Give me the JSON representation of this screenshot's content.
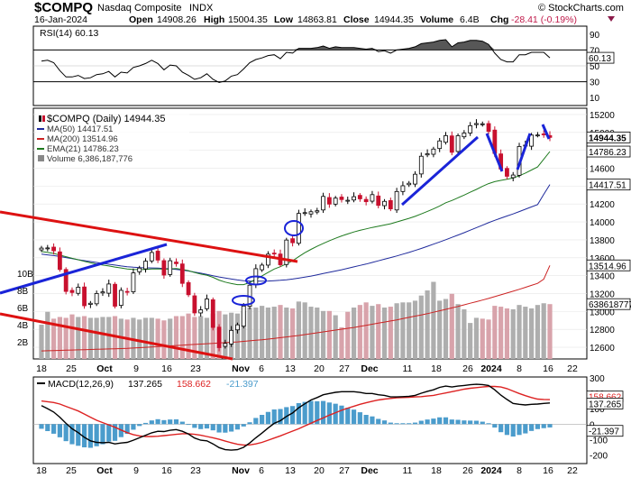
{
  "header": {
    "symbol": "$COMPQ",
    "name": "Nasdaq Composite",
    "exchange": "INDX",
    "date": "16-Jan-2024",
    "open_label": "Open",
    "open": "14908.26",
    "high_label": "High",
    "high": "15004.35",
    "low_label": "Low",
    "low": "14863.81",
    "close_label": "Close",
    "close": "14944.35",
    "volume_label": "Volume",
    "volume": "6.4B",
    "chg_label": "Chg",
    "chg": "-28.41 (-0.19%)",
    "brand": "© StockCharts.com"
  },
  "rsi_panel": {
    "legend": "RSI(14) 60.13",
    "value_tag": "60.13",
    "ticks": [
      "90",
      "70",
      "50",
      "30",
      "10"
    ]
  },
  "price_panel": {
    "legend": [
      {
        "text": "$COMPQ (Daily) 14944.35",
        "color": "#000000"
      },
      {
        "text": "MA(50) 14417.51",
        "color": "#1f2a9c"
      },
      {
        "text": "MA(200) 13514.96",
        "color": "#cc2222"
      },
      {
        "text": "EMA(21) 14786.23",
        "color": "#1e7a1e"
      },
      {
        "text": "Volume 6,386,187,776",
        "color": "#555555"
      }
    ],
    "tags": {
      "close": "14944.35",
      "ema21": "14786.23",
      "ma50": "14417.51",
      "ma200": "13514.96",
      "volume": "6386187776"
    },
    "price_ticks": [
      "15200",
      "15000",
      "14800",
      "14600",
      "14400",
      "14200",
      "14000",
      "13800",
      "13600",
      "13400",
      "13200",
      "13000",
      "12800",
      "12600"
    ],
    "volume_ticks": [
      "10B",
      "8B",
      "6B",
      "4B",
      "2B"
    ]
  },
  "macd_panel": {
    "legend_text": "MACD(12,26,9)",
    "macd_value": "137.265",
    "signal_value": "158.662",
    "hist_value": "-21.397",
    "tags": {
      "signal": "158.662",
      "macd": "137.265",
      "hist": "-21.397"
    },
    "ticks": [
      "300",
      "200",
      "100",
      "0",
      "-100",
      "-200"
    ]
  },
  "x_axis": {
    "labels": [
      "18",
      "25",
      "Oct",
      "9",
      "16",
      "23",
      "Nov",
      "6",
      "13",
      "20",
      "27",
      "Dec",
      "11",
      "18",
      "26",
      "2024",
      "8",
      "16",
      "22"
    ],
    "bold": [
      "Oct",
      "Nov",
      "Dec",
      "2024"
    ]
  },
  "chart_data": [
    {
      "type": "candlestick",
      "title": "$COMPQ (Daily) 14944.35",
      "x": [
        "2023-09-15",
        "2023-09-18",
        "2023-09-19",
        "2023-09-20",
        "2023-09-21",
        "2023-09-22",
        "2023-09-25",
        "2023-09-26",
        "2023-09-27",
        "2023-09-28",
        "2023-09-29",
        "2023-10-02",
        "2023-10-03",
        "2023-10-04",
        "2023-10-05",
        "2023-10-06",
        "2023-10-09",
        "2023-10-10",
        "2023-10-11",
        "2023-10-12",
        "2023-10-13",
        "2023-10-16",
        "2023-10-17",
        "2023-10-18",
        "2023-10-19",
        "2023-10-20",
        "2023-10-23",
        "2023-10-24",
        "2023-10-25",
        "2023-10-26",
        "2023-10-27",
        "2023-10-30",
        "2023-10-31",
        "2023-11-01",
        "2023-11-02",
        "2023-11-03",
        "2023-11-06",
        "2023-11-07",
        "2023-11-08",
        "2023-11-09",
        "2023-11-10",
        "2023-11-13",
        "2023-11-14",
        "2023-11-15",
        "2023-11-16",
        "2023-11-17",
        "2023-11-20",
        "2023-11-21",
        "2023-11-22",
        "2023-11-24",
        "2023-11-27",
        "2023-11-28",
        "2023-11-29",
        "2023-11-30",
        "2023-12-01",
        "2023-12-04",
        "2023-12-05",
        "2023-12-06",
        "2023-12-07",
        "2023-12-08",
        "2023-12-11",
        "2023-12-12",
        "2023-12-13",
        "2023-12-14",
        "2023-12-15",
        "2023-12-18",
        "2023-12-19",
        "2023-12-20",
        "2023-12-21",
        "2023-12-22",
        "2023-12-26",
        "2023-12-27",
        "2023-12-28",
        "2023-12-29",
        "2024-01-02",
        "2024-01-03",
        "2024-01-04",
        "2024-01-05",
        "2024-01-08",
        "2024-01-09",
        "2024-01-10",
        "2024-01-11",
        "2024-01-12",
        "2024-01-16"
      ],
      "close": [
        13708,
        13710,
        13678,
        13469,
        13224,
        13212,
        13271,
        13064,
        13092,
        13201,
        13219,
        13307,
        13059,
        13236,
        13220,
        13431,
        13485,
        13562,
        13659,
        13574,
        13407,
        13567,
        13534,
        13314,
        13187,
        12984,
        13019,
        13140,
        12822,
        12596,
        12643,
        12789,
        12851,
        13061,
        13294,
        13478,
        13518,
        13640,
        13651,
        13522,
        13798,
        13768,
        14095,
        14104,
        14114,
        14125,
        14285,
        14199,
        14266,
        14250,
        14242,
        14282,
        14258,
        14226,
        14305,
        14185,
        14230,
        14146,
        14340,
        14404,
        14432,
        14533,
        14734,
        14762,
        14814,
        14905,
        14964,
        14778,
        14963,
        14993,
        15075,
        15099,
        15096,
        15011,
        14766,
        14592,
        14510,
        14524,
        14843,
        14858,
        14970,
        14971,
        14973,
        14944
      ],
      "volume_B": [
        4.0,
        5.5,
        4.7,
        4.9,
        4.8,
        5.2,
        4.9,
        5.0,
        4.8,
        4.8,
        4.9,
        4.9,
        5.0,
        4.7,
        4.6,
        4.8,
        4.6,
        4.8,
        4.8,
        4.7,
        4.5,
        4.7,
        5.0,
        5.0,
        5.3,
        4.9,
        5.0,
        4.8,
        5.3,
        5.6,
        5.2,
        5.4,
        5.3,
        5.6,
        6.0,
        6.0,
        6.2,
        6.0,
        6.1,
        6.3,
        6.0,
        5.9,
        6.7,
        6.6,
        6.1,
        6.0,
        5.6,
        5.6,
        5.1,
        3.7,
        5.5,
        6.0,
        6.3,
        6.6,
        6.2,
        6.4,
        6.0,
        6.1,
        6.5,
        6.6,
        6.6,
        6.8,
        7.4,
        8.0,
        9.0,
        6.8,
        7.0,
        7.6,
        6.4,
        5.8,
        4.2,
        4.8,
        4.7,
        4.6,
        6.2,
        6.1,
        5.9,
        5.8,
        6.3,
        6.1,
        5.9,
        6.3,
        6.5,
        6.4
      ],
      "ma50": [
        13640,
        13632,
        13624,
        13614,
        13602,
        13590,
        13578,
        13568,
        13558,
        13548,
        13538,
        13528,
        13518,
        13508,
        13500,
        13494,
        13490,
        13488,
        13486,
        13484,
        13480,
        13476,
        13470,
        13462,
        13452,
        13440,
        13428,
        13414,
        13400,
        13386,
        13374,
        13362,
        13352,
        13344,
        13340,
        13338,
        13338,
        13340,
        13344,
        13348,
        13354,
        13362,
        13372,
        13384,
        13396,
        13410,
        13424,
        13438,
        13452,
        13466,
        13482,
        13498,
        13514,
        13530,
        13548,
        13566,
        13584,
        13602,
        13620,
        13640,
        13660,
        13682,
        13704,
        13728,
        13752,
        13776,
        13802,
        13828,
        13854,
        13880,
        13908,
        13936,
        13964,
        13992,
        14018,
        14042,
        14066,
        14090,
        14116,
        14142,
        14168,
        14194,
        14308,
        14417.51
      ],
      "ma200": [
        12560,
        12562,
        12564,
        12566,
        12568,
        12570,
        12572,
        12574,
        12576,
        12578,
        12580,
        12582,
        12584,
        12586,
        12588,
        12592,
        12596,
        12600,
        12604,
        12608,
        12612,
        12616,
        12620,
        12624,
        12628,
        12632,
        12636,
        12640,
        12644,
        12648,
        12652,
        12656,
        12660,
        12666,
        12672,
        12678,
        12684,
        12692,
        12700,
        12708,
        12716,
        12724,
        12732,
        12742,
        12752,
        12762,
        12772,
        12782,
        12792,
        12802,
        12812,
        12822,
        12834,
        12846,
        12858,
        12870,
        12882,
        12894,
        12906,
        12920,
        12934,
        12948,
        12962,
        12976,
        12992,
        13008,
        13024,
        13040,
        13056,
        13074,
        13092,
        13110,
        13128,
        13146,
        13166,
        13186,
        13206,
        13226,
        13248,
        13270,
        13292,
        13314,
        13360,
        13514.96
      ],
      "ema21": [
        13670,
        13660,
        13648,
        13630,
        13612,
        13594,
        13578,
        13560,
        13544,
        13530,
        13518,
        13508,
        13496,
        13486,
        13474,
        13470,
        13468,
        13470,
        13474,
        13476,
        13472,
        13476,
        13480,
        13470,
        13456,
        13436,
        13418,
        13406,
        13382,
        13350,
        13328,
        13312,
        13300,
        13300,
        13322,
        13362,
        13398,
        13436,
        13474,
        13500,
        13532,
        13566,
        13612,
        13656,
        13694,
        13728,
        13760,
        13790,
        13818,
        13844,
        13866,
        13888,
        13906,
        13922,
        13938,
        13952,
        13966,
        13980,
        14000,
        14020,
        14040,
        14062,
        14090,
        14118,
        14146,
        14178,
        14214,
        14240,
        14270,
        14300,
        14332,
        14364,
        14398,
        14428,
        14450,
        14464,
        14476,
        14490,
        14516,
        14546,
        14580,
        14614,
        14700,
        14786.23
      ]
    },
    {
      "type": "line",
      "title": "RSI(14)",
      "ylim": [
        0,
        100
      ],
      "x_source": "same dates as price panel",
      "values": [
        56,
        57,
        54,
        44,
        36,
        36,
        38,
        34,
        35,
        39,
        40,
        43,
        36,
        42,
        41,
        48,
        50,
        53,
        57,
        53,
        45,
        51,
        50,
        42,
        38,
        33,
        35,
        40,
        33,
        29,
        31,
        37,
        39,
        46,
        54,
        58,
        60,
        63,
        64,
        59,
        67,
        66,
        72,
        72,
        72,
        73,
        75,
        72,
        74,
        73,
        73,
        73,
        72,
        71,
        72,
        68,
        69,
        66,
        70,
        71,
        72,
        74,
        78,
        79,
        80,
        82,
        83,
        74,
        79,
        80,
        82,
        82,
        81,
        77,
        66,
        58,
        55,
        55,
        64,
        64,
        67,
        67,
        67,
        60.13
      ],
      "levels": [
        70,
        30
      ]
    },
    {
      "type": "line",
      "title": "MACD(12,26,9)",
      "ylim": [
        -250,
        300
      ],
      "series": [
        {
          "name": "MACD",
          "values": [
            120,
            100,
            78,
            45,
            5,
            -30,
            -55,
            -85,
            -108,
            -118,
            -120,
            -118,
            -128,
            -122,
            -118,
            -104,
            -88,
            -72,
            -56,
            -46,
            -48,
            -40,
            -35,
            -46,
            -64,
            -90,
            -104,
            -108,
            -128,
            -152,
            -165,
            -168,
            -165,
            -150,
            -122,
            -88,
            -58,
            -25,
            5,
            22,
            50,
            72,
            106,
            132,
            156,
            172,
            190,
            198,
            206,
            210,
            210,
            210,
            205,
            198,
            198,
            190,
            186,
            176,
            176,
            178,
            180,
            186,
            200,
            212,
            222,
            238,
            246,
            240,
            246,
            250,
            255,
            258,
            256,
            250,
            222,
            188,
            160,
            134,
            128,
            124,
            128,
            130,
            134,
            137.265
          ]
        },
        {
          "name": "Signal",
          "values": [
            150,
            145,
            140,
            130,
            115,
            100,
            85,
            65,
            45,
            25,
            10,
            -5,
            -20,
            -38,
            -55,
            -68,
            -76,
            -80,
            -80,
            -78,
            -74,
            -70,
            -66,
            -62,
            -62,
            -66,
            -72,
            -80,
            -88,
            -98,
            -110,
            -120,
            -130,
            -135,
            -134,
            -128,
            -118,
            -104,
            -90,
            -76,
            -60,
            -45,
            -30,
            -12,
            6,
            24,
            40,
            58,
            74,
            90,
            104,
            116,
            128,
            138,
            148,
            156,
            162,
            166,
            170,
            172,
            174,
            176,
            178,
            182,
            186,
            194,
            202,
            210,
            218,
            226,
            232,
            236,
            240,
            244,
            244,
            240,
            230,
            214,
            198,
            184,
            172,
            162,
            160,
            158.662
          ]
        }
      ],
      "histogram": [
        -30,
        -45,
        -62,
        -85,
        -110,
        -130,
        -140,
        -150,
        -153,
        -143,
        -130,
        -113,
        -108,
        -84,
        -63,
        -36,
        -12,
        8,
        24,
        32,
        26,
        30,
        31,
        16,
        -2,
        -24,
        -32,
        -28,
        -40,
        -54,
        -55,
        -48,
        -35,
        -15,
        12,
        40,
        60,
        79,
        95,
        98,
        110,
        117,
        136,
        144,
        150,
        148,
        150,
        140,
        132,
        120,
        106,
        94,
        77,
        60,
        50,
        34,
        24,
        10,
        6,
        6,
        6,
        10,
        22,
        30,
        36,
        44,
        44,
        30,
        28,
        24,
        23,
        22,
        16,
        6,
        -22,
        -52,
        -70,
        -80,
        -70,
        -60,
        -44,
        -32,
        -26,
        -21.397
      ]
    }
  ]
}
